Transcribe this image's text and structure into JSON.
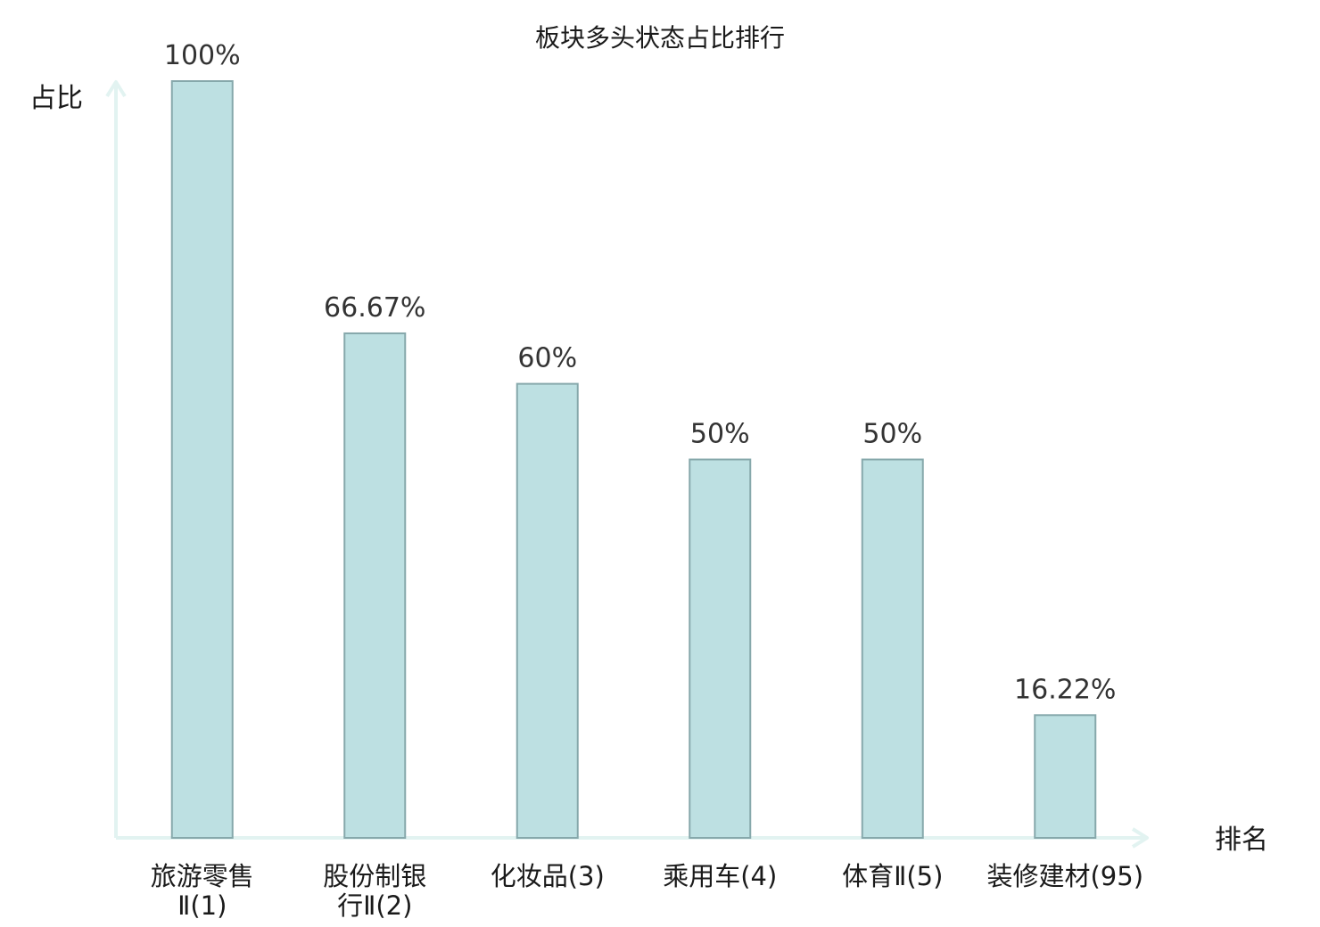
{
  "chart_data": {
    "type": "bar",
    "title": "板块多头状态占比排行",
    "ylabel": "占比",
    "xlabel": "排名",
    "ylim": [
      0,
      100
    ],
    "grid": false,
    "categories": [
      [
        "旅游零售",
        "Ⅱ(1)"
      ],
      [
        "股份制银",
        "行Ⅱ(2)"
      ],
      [
        "化妆品(3)"
      ],
      [
        "乘用车(4)"
      ],
      [
        "体育Ⅱ(5)"
      ],
      [
        "装修建材(95)"
      ]
    ],
    "values": [
      100,
      66.67,
      60,
      50,
      50,
      16.22
    ],
    "value_labels": [
      "100%",
      "66.67%",
      "60%",
      "50%",
      "50%",
      "16.22%"
    ],
    "highlight_index": 5
  },
  "colors": {
    "bar_fill": "#bde0e2",
    "bar_stroke": "#86a8ab",
    "axis": "#e2f3f1",
    "highlight_label": "#e02020",
    "text": "#1a1a1a"
  }
}
